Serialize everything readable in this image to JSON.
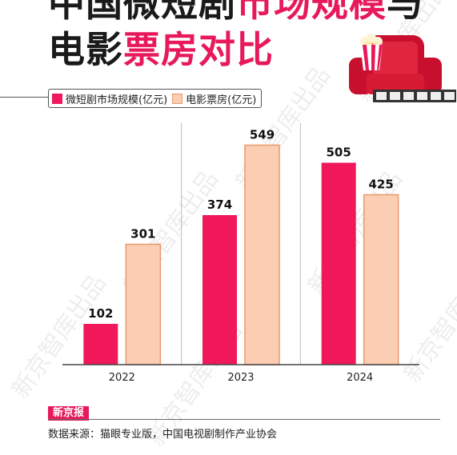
{
  "title": {
    "line1": [
      {
        "text": "中国微短剧",
        "color": "#1a1a1a"
      },
      {
        "text": "市场规模",
        "color": "#e8195a"
      },
      {
        "text": "与",
        "color": "#1a1a1a"
      }
    ],
    "line2": [
      {
        "text": "电影",
        "color": "#1a1a1a"
      },
      {
        "text": "票房对比",
        "color": "#e8195a"
      }
    ]
  },
  "legend": {
    "series1": "微短剧市场规模(亿元)",
    "series2": "电影票房(亿元)"
  },
  "chart_data": {
    "type": "bar",
    "title": "中国微短剧市场规模与电影票房对比",
    "categories": [
      "2022",
      "2023",
      "2024"
    ],
    "series": [
      {
        "name": "微短剧市场规模(亿元)",
        "values": [
          102,
          374,
          505
        ],
        "color": "#f0185a"
      },
      {
        "name": "电影票房(亿元)",
        "values": [
          301,
          549,
          425
        ],
        "color": "#fbcdb3",
        "stroke": "#e99a6c"
      }
    ],
    "data_labels": true,
    "ylim": [
      0,
      600
    ],
    "grid": false,
    "legend_position": "top-left"
  },
  "watermark": "新京智库出品",
  "source": {
    "tag": "新京报",
    "text": "数据来源：猫眼专业版，中国电视剧制作产业协会"
  },
  "icons": [
    "popcorn-icon",
    "cinema-seat-icon",
    "film-strip-icon"
  ],
  "colors": {
    "accent": "#e8195a",
    "bar1": "#f0185a",
    "bar2": "#fbcdb3"
  }
}
